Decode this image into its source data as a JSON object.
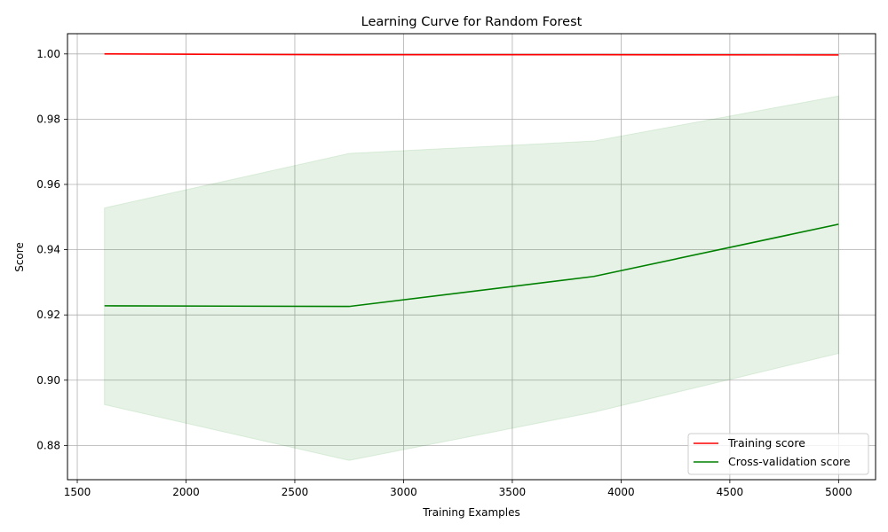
{
  "chart_data": {
    "type": "line",
    "title": "Learning Curve for Random Forest",
    "xlabel": "Training Examples",
    "ylabel": "Score",
    "xlim": [
      1455,
      5170
    ],
    "ylim": [
      0.8695,
      1.0062
    ],
    "xticks": [
      1500,
      2000,
      2500,
      3000,
      3500,
      4000,
      4500,
      5000
    ],
    "yticks": [
      0.88,
      0.9,
      0.92,
      0.94,
      0.96,
      0.98,
      1.0
    ],
    "xtick_labels": [
      "1500",
      "2000",
      "2500",
      "3000",
      "3500",
      "4000",
      "4500",
      "5000"
    ],
    "ytick_labels": [
      "0.88",
      "0.90",
      "0.92",
      "0.94",
      "0.96",
      "0.98",
      "1.00"
    ],
    "grid": true,
    "legend_position": "lower-right",
    "x": [
      1625,
      2750,
      3875,
      5000
    ],
    "series": [
      {
        "name": "Training score",
        "color": "#ff0000",
        "values": [
          1.0,
          0.99975,
          0.99975,
          0.9997
        ],
        "band_lower": [
          1.0,
          0.99975,
          0.99975,
          0.9997
        ],
        "band_upper": [
          1.0,
          0.99975,
          0.99975,
          0.9997
        ]
      },
      {
        "name": "Cross-validation score",
        "color": "#008000",
        "values": [
          0.9228,
          0.9226,
          0.9318,
          0.9478
        ],
        "band_lower": [
          0.8925,
          0.8754,
          0.8902,
          0.9082
        ],
        "band_upper": [
          0.9528,
          0.9695,
          0.9733,
          0.9871
        ]
      }
    ]
  }
}
